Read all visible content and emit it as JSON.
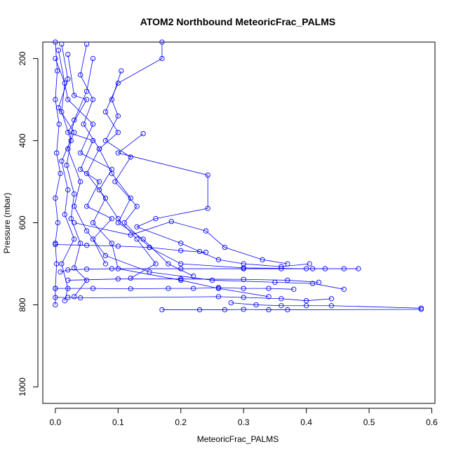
{
  "chart_data": {
    "type": "line",
    "title": "ATOM2 Northbound MeteoricFrac_PALMS",
    "xlabel": "MeteoricFrac_PALMS",
    "ylabel": "Pressure (mbar)",
    "xlim": [
      -0.02,
      0.605
    ],
    "ylim": [
      1040,
      160
    ],
    "y_reversed": true,
    "x_ticks": [
      0.0,
      0.1,
      0.2,
      0.3,
      0.4,
      0.5,
      0.6
    ],
    "x_tick_labels": [
      "0.0",
      "0.1",
      "0.2",
      "0.3",
      "0.4",
      "0.5",
      "0.6"
    ],
    "y_ticks": [
      200,
      400,
      600,
      800,
      1000
    ],
    "y_tick_labels": [
      "200",
      "400",
      "600",
      "800",
      "1000"
    ],
    "grid": false,
    "legend": "none",
    "line_color": "#0000ff",
    "marker": "open-circle",
    "series": [
      {
        "points": [
          [
            0.0,
            160
          ],
          [
            0.003,
            230
          ],
          [
            0.0,
            300
          ],
          [
            0.006,
            360
          ],
          [
            0.002,
            430
          ],
          [
            0.008,
            480
          ],
          [
            0.0,
            540
          ],
          [
            0.004,
            600
          ],
          [
            0.0,
            650
          ],
          [
            0.002,
            700
          ],
          [
            0.0,
            760
          ],
          [
            0.0,
            800
          ]
        ]
      },
      {
        "points": [
          [
            0.01,
            165
          ],
          [
            0.02,
            250
          ],
          [
            0.005,
            320
          ],
          [
            0.03,
            380
          ],
          [
            0.01,
            450
          ],
          [
            0.02,
            520
          ],
          [
            0.015,
            580
          ],
          [
            0.03,
            640
          ],
          [
            0.01,
            700
          ],
          [
            0.02,
            760
          ],
          [
            0.015,
            790
          ]
        ]
      },
      {
        "points": [
          [
            0.05,
            165
          ],
          [
            0.04,
            240
          ],
          [
            0.06,
            300
          ],
          [
            0.045,
            360
          ],
          [
            0.07,
            420
          ],
          [
            0.05,
            480
          ],
          [
            0.08,
            540
          ],
          [
            0.06,
            600
          ],
          [
            0.09,
            650
          ],
          [
            0.1,
            712
          ],
          [
            0.2,
            740
          ],
          [
            0.26,
            760
          ],
          [
            0.34,
            780
          ]
        ]
      },
      {
        "points": [
          [
            0.105,
            230
          ],
          [
            0.09,
            300
          ],
          [
            0.1,
            340
          ],
          [
            0.08,
            400
          ],
          [
            0.12,
            440
          ],
          [
            0.095,
            500
          ],
          [
            0.13,
            560
          ],
          [
            0.11,
            600
          ],
          [
            0.15,
            660
          ],
          [
            0.2,
            700
          ],
          [
            0.3,
            710
          ],
          [
            0.4,
            712
          ],
          [
            0.46,
            712
          ],
          [
            0.483,
            712
          ]
        ]
      },
      {
        "points": [
          [
            0.14,
            383
          ],
          [
            0.1,
            430
          ],
          [
            0.243,
            484
          ],
          [
            0.243,
            565
          ],
          [
            0.16,
            590
          ],
          [
            0.13,
            610
          ],
          [
            0.2,
            650
          ],
          [
            0.23,
            670
          ],
          [
            0.26,
            690
          ],
          [
            0.3,
            700
          ],
          [
            0.36,
            707
          ],
          [
            0.405,
            700
          ]
        ]
      },
      {
        "points": [
          [
            0.06,
            200
          ],
          [
            0.05,
            280
          ],
          [
            0.03,
            350
          ],
          [
            0.02,
            420
          ],
          [
            0.04,
            500
          ],
          [
            0.03,
            560
          ],
          [
            0.05,
            620
          ],
          [
            0.08,
            680
          ],
          [
            0.15,
            720
          ],
          [
            0.25,
            740
          ],
          [
            0.35,
            745
          ],
          [
            0.41,
            748
          ],
          [
            0.46,
            762
          ]
        ]
      },
      {
        "points": [
          [
            0.03,
            600
          ],
          [
            0.12,
            630
          ],
          [
            0.185,
            597
          ],
          [
            0.24,
            620
          ],
          [
            0.27,
            660
          ],
          [
            0.33,
            690
          ],
          [
            0.37,
            700
          ]
        ]
      },
      {
        "points": [
          [
            0.0,
            653
          ],
          [
            0.05,
            655
          ],
          [
            0.1,
            657
          ],
          [
            0.15,
            660
          ],
          [
            0.2,
            668
          ],
          [
            0.24,
            672
          ]
        ]
      },
      {
        "points": [
          [
            0.02,
            740
          ],
          [
            0.1,
            737
          ],
          [
            0.2,
            737
          ],
          [
            0.3,
            738
          ],
          [
            0.37,
            740
          ],
          [
            0.42,
            745
          ]
        ]
      },
      {
        "points": [
          [
            0.0,
            760
          ],
          [
            0.06,
            760
          ],
          [
            0.12,
            761
          ],
          [
            0.18,
            760
          ],
          [
            0.22,
            760
          ],
          [
            0.26,
            758
          ],
          [
            0.3,
            760
          ],
          [
            0.34,
            760
          ],
          [
            0.38,
            762
          ]
        ]
      },
      {
        "points": [
          [
            0.0,
            782
          ],
          [
            0.02,
            782
          ],
          [
            0.04,
            783
          ],
          [
            0.26,
            780
          ],
          [
            0.3,
            782
          ],
          [
            0.36,
            785
          ],
          [
            0.4,
            790
          ],
          [
            0.44,
            785
          ]
        ]
      },
      {
        "points": [
          [
            0.28,
            795
          ],
          [
            0.32,
            800
          ],
          [
            0.36,
            802
          ],
          [
            0.4,
            802
          ],
          [
            0.44,
            802
          ],
          [
            0.583,
            808
          ]
        ]
      },
      {
        "points": [
          [
            0.17,
            812
          ],
          [
            0.23,
            812
          ],
          [
            0.27,
            812
          ],
          [
            0.3,
            811
          ],
          [
            0.34,
            812
          ],
          [
            0.37,
            812
          ],
          [
            0.583,
            811
          ]
        ]
      },
      {
        "points": [
          [
            0.005,
            180
          ],
          [
            0.02,
            300
          ],
          [
            0.06,
            360
          ],
          [
            0.04,
            430
          ],
          [
            0.09,
            470
          ],
          [
            0.07,
            520
          ],
          [
            0.1,
            590
          ],
          [
            0.13,
            640
          ],
          [
            0.16,
            700
          ],
          [
            0.12,
            735
          ]
        ]
      },
      {
        "points": [
          [
            0.0,
            200
          ],
          [
            0.015,
            260
          ],
          [
            0.01,
            330
          ],
          [
            0.025,
            400
          ],
          [
            0.018,
            460
          ],
          [
            0.03,
            530
          ],
          [
            0.025,
            590
          ],
          [
            0.04,
            650
          ],
          [
            0.03,
            710
          ],
          [
            0.05,
            740
          ],
          [
            0.03,
            780
          ]
        ]
      },
      {
        "points": [
          [
            0.02,
            190
          ],
          [
            0.03,
            290
          ],
          [
            0.05,
            300
          ],
          [
            0.02,
            380
          ],
          [
            0.06,
            400
          ],
          [
            0.04,
            470
          ],
          [
            0.07,
            500
          ],
          [
            0.05,
            560
          ],
          [
            0.09,
            590
          ],
          [
            0.06,
            640
          ],
          [
            0.08,
            700
          ]
        ]
      },
      {
        "points": [
          [
            0.17,
            160
          ],
          [
            0.17,
            200
          ],
          [
            0.1,
            260
          ],
          [
            0.08,
            330
          ],
          [
            0.1,
            380
          ],
          [
            0.07,
            420
          ],
          [
            0.09,
            480
          ],
          [
            0.12,
            540
          ],
          [
            0.1,
            600
          ],
          [
            0.14,
            640
          ],
          [
            0.18,
            700
          ],
          [
            0.22,
            730
          ]
        ]
      },
      {
        "points": [
          [
            0.008,
            720
          ],
          [
            0.02,
            715
          ],
          [
            0.05,
            713
          ],
          [
            0.09,
            712
          ],
          [
            0.2,
            712
          ],
          [
            0.3,
            712
          ],
          [
            0.36,
            712
          ],
          [
            0.41,
            712
          ],
          [
            0.43,
            712
          ]
        ]
      }
    ]
  }
}
